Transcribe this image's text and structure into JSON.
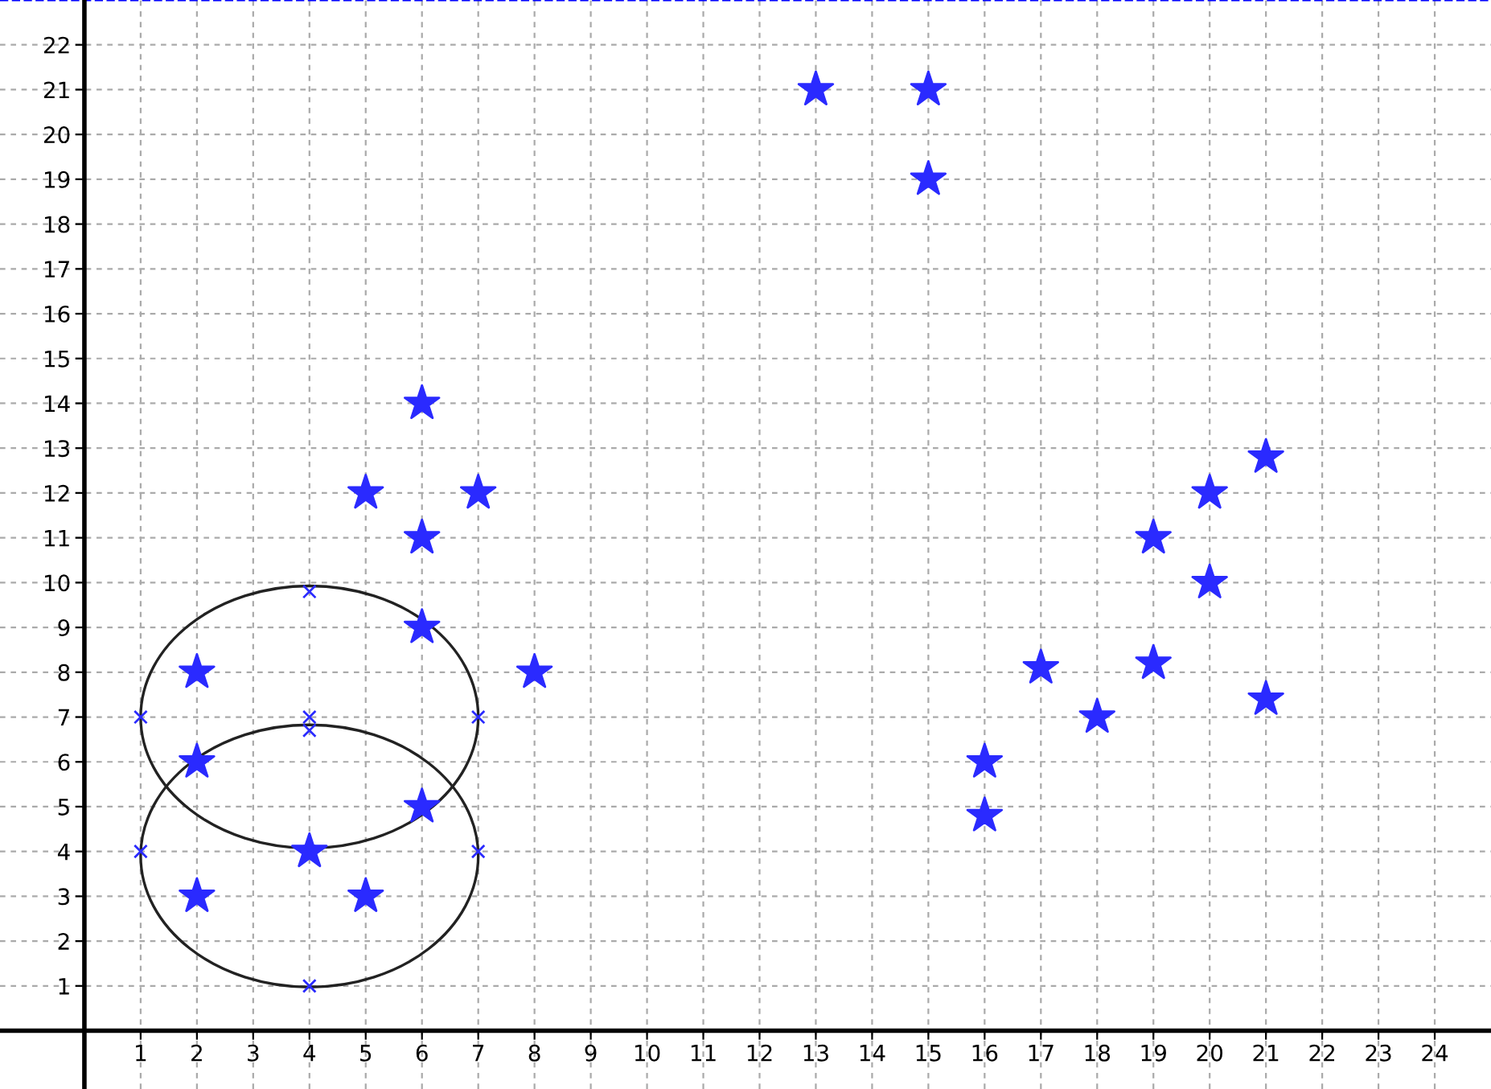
{
  "chart_data": {
    "type": "scatter",
    "xlim": [
      -1.5,
      25
    ],
    "ylim": [
      -1.3,
      23
    ],
    "xticks": [
      1,
      2,
      3,
      4,
      5,
      6,
      7,
      8,
      9,
      10,
      11,
      12,
      13,
      14,
      15,
      16,
      17,
      18,
      19,
      20,
      21,
      22,
      23,
      24
    ],
    "yticks": [
      1,
      2,
      3,
      4,
      5,
      6,
      7,
      8,
      9,
      10,
      11,
      12,
      13,
      14,
      15,
      16,
      17,
      18,
      19,
      20,
      21,
      22
    ],
    "grid": true,
    "ref_lines": [
      {
        "axis": "y",
        "value": 23,
        "color": "#0000ff",
        "line_style": "dashed"
      }
    ],
    "series": [
      {
        "color": "#2a2aff",
        "marker": "star",
        "x": [
          2,
          2,
          2,
          4,
          5,
          5,
          6,
          6,
          6,
          6,
          7,
          8,
          13,
          15,
          15,
          16,
          16,
          17,
          18,
          19,
          19,
          20,
          20,
          21,
          21
        ],
        "values": [
          8,
          6,
          3,
          4,
          3,
          12,
          14,
          11,
          9,
          5,
          12,
          8,
          21,
          21,
          19,
          6,
          4.8,
          8.1,
          7,
          8.2,
          11,
          12,
          10,
          12.8,
          7.4
        ]
      },
      {
        "color": "#2a2aff",
        "marker": "cross",
        "x": [
          1,
          7,
          4,
          4,
          4,
          1,
          7,
          4,
          4
        ],
        "values": [
          7,
          7,
          9.8,
          7,
          6.7,
          4,
          4,
          4,
          1
        ]
      }
    ]
  }
}
